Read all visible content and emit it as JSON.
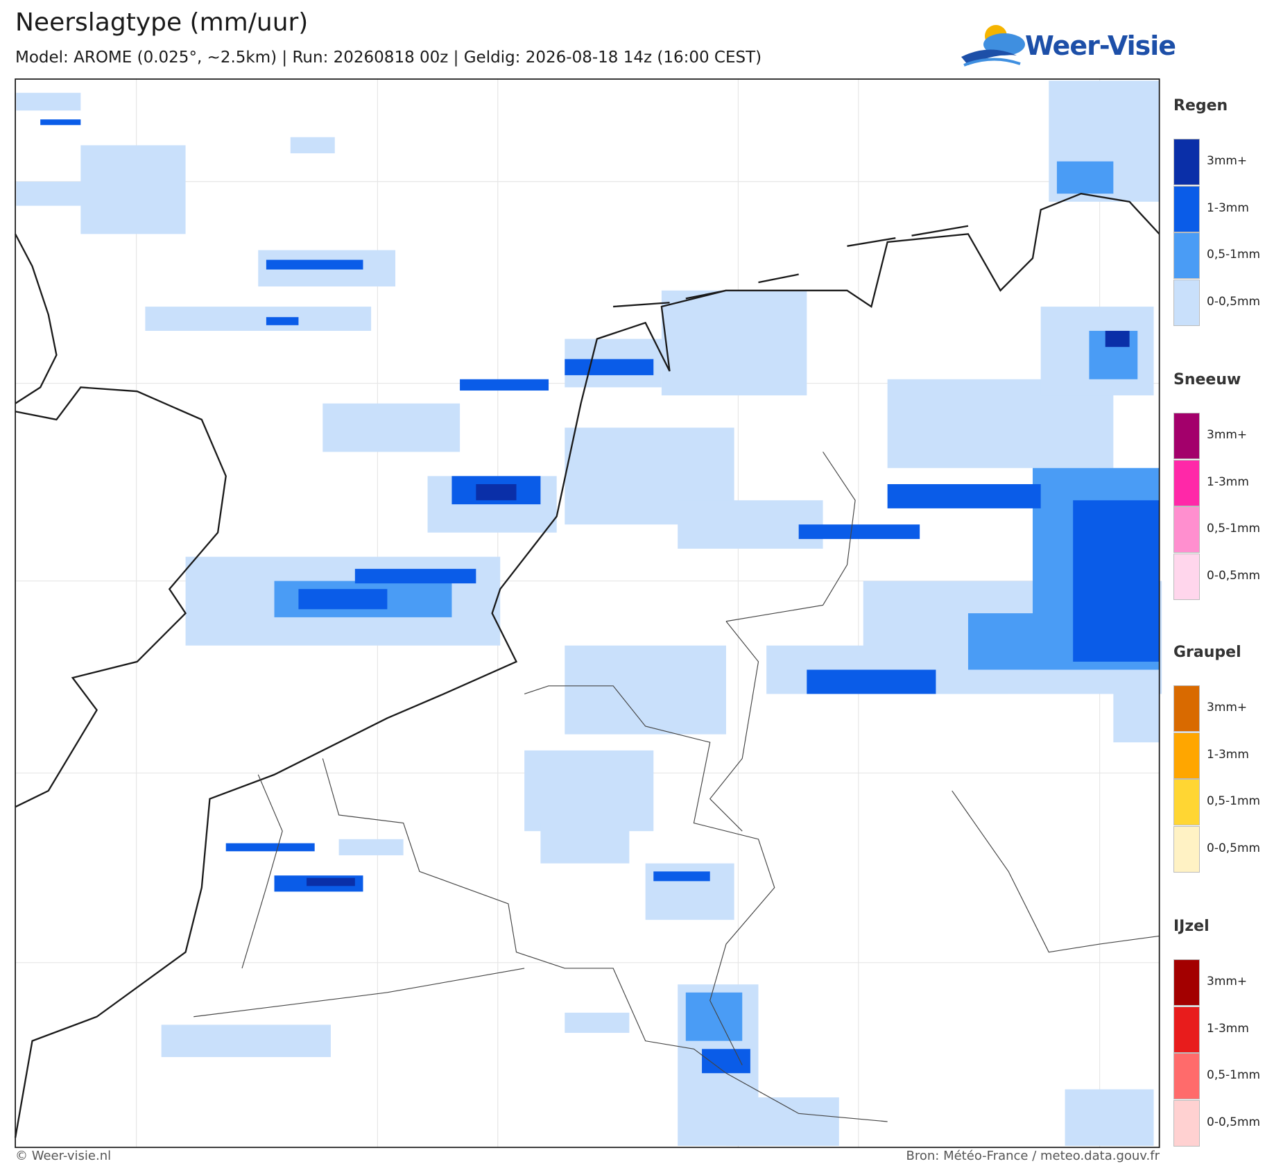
{
  "header": {
    "title": "Neerslagtype (mm/uur)",
    "subtitle": "Model: AROME (0.025°, ~2.5km)  |  Run: 20260818 00z  |  Geldig: 2026-08-18 14z (16:00 CEST)"
  },
  "logo": {
    "text": "Weer-Visie"
  },
  "legend": [
    {
      "title": "Regen",
      "colors": [
        "#0a2fa8",
        "#0a5ce8",
        "#4a9cf5",
        "#c9e0fb"
      ],
      "labels": [
        "3mm+",
        "1-3mm",
        "0,5-1mm",
        "0-0,5mm"
      ]
    },
    {
      "title": "Sneeuw",
      "colors": [
        "#a3006b",
        "#ff28a8",
        "#ff8fcf",
        "#ffd6ec"
      ],
      "labels": [
        "3mm+",
        "1-3mm",
        "0,5-1mm",
        "0-0,5mm"
      ]
    },
    {
      "title": "Graupel",
      "colors": [
        "#d96a00",
        "#ffa600",
        "#ffd633",
        "#fff2c4"
      ],
      "labels": [
        "3mm+",
        "1-3mm",
        "0,5-1mm",
        "0-0,5mm"
      ]
    },
    {
      "title": "IJzel",
      "colors": [
        "#a30000",
        "#e81c1c",
        "#ff6b6b",
        "#ffd1d1"
      ],
      "labels": [
        "3mm+",
        "1-3mm",
        "0,5-1mm",
        "0-0,5mm"
      ]
    }
  ],
  "footer": {
    "left": "© Weer-visie.nl",
    "right": "Bron: Météo-France / meteo.data.gouv.fr"
  }
}
